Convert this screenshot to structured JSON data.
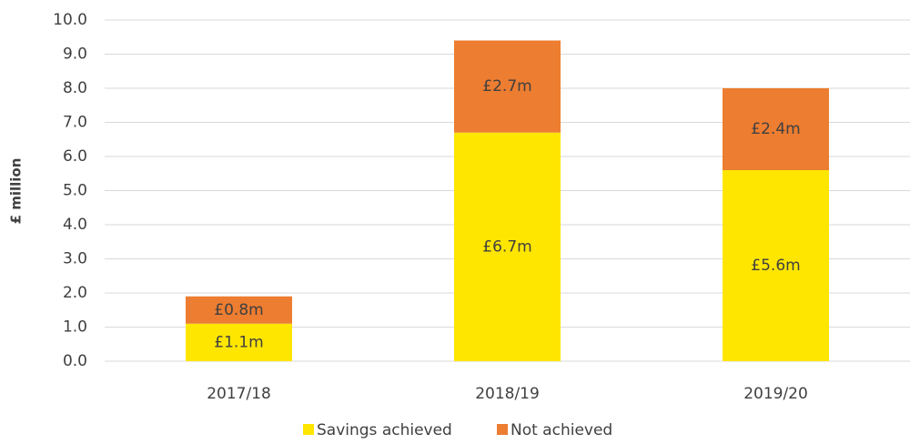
{
  "chart_data": {
    "type": "stacked_bar",
    "y_label": "£ million",
    "categories": [
      "2017/18",
      "2018/19",
      "2019/20"
    ],
    "series": [
      {
        "name": "Savings achieved",
        "color": "#ffe600",
        "values": [
          1.1,
          6.7,
          5.6
        ],
        "value_labels": [
          "£1.1m",
          "£6.7m",
          "£5.6m"
        ]
      },
      {
        "name": "Not achieved",
        "color": "#ed7d31",
        "values": [
          0.8,
          2.7,
          2.4
        ],
        "value_labels": [
          "£0.8m",
          "£2.7m",
          "£2.4m"
        ]
      }
    ],
    "ylim": [
      0,
      10
    ],
    "yticks": [
      {
        "value": 0,
        "label": "0.0"
      },
      {
        "value": 1,
        "label": "1.0"
      },
      {
        "value": 2,
        "label": "2.0"
      },
      {
        "value": 3,
        "label": "3.0"
      },
      {
        "value": 4,
        "label": "4.0"
      },
      {
        "value": 5,
        "label": "5.0"
      },
      {
        "value": 6,
        "label": "6.0"
      },
      {
        "value": 7,
        "label": "7.0"
      },
      {
        "value": 8,
        "label": "8.0"
      },
      {
        "value": 9,
        "label": "9.0"
      },
      {
        "value": 10,
        "label": "10.0"
      }
    ],
    "grid": true,
    "legend": "bottom"
  }
}
